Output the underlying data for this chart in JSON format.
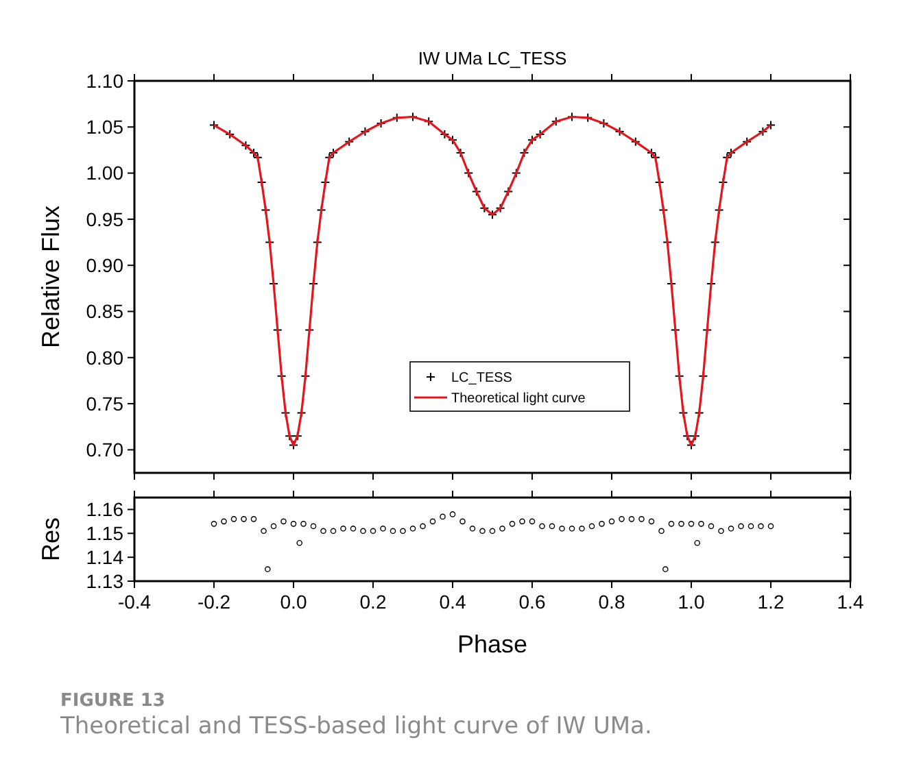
{
  "chart_data": [
    {
      "type": "scatter",
      "title": "IW UMa LC_TESS",
      "ylabel": "Relative Flux",
      "xlim": [
        -0.4,
        1.4
      ],
      "ylim": [
        0.675,
        1.1
      ],
      "xticks": [
        -0.4,
        -0.2,
        0,
        0.2,
        0.4,
        0.6,
        0.8,
        1,
        1.2,
        1.4
      ],
      "yticks": [
        {
          "value": 0.7,
          "label": "0.70"
        },
        {
          "value": 0.75,
          "label": "0.75"
        },
        {
          "value": 0.8,
          "label": "0.80"
        },
        {
          "value": 0.85,
          "label": "0.85"
        },
        {
          "value": 0.9,
          "label": "0.90"
        },
        {
          "value": 0.95,
          "label": "0.95"
        },
        {
          "value": 1,
          "label": "1.00"
        },
        {
          "value": 1.05,
          "label": "1.05"
        },
        {
          "value": 1.1,
          "label": "1.10"
        }
      ],
      "tick_labels": "y",
      "legend": "bottom",
      "grid": false,
      "x": [
        -0.2,
        -0.16,
        -0.12,
        -0.1,
        -0.09,
        -0.08,
        -0.07,
        -0.06,
        -0.05,
        -0.04,
        -0.03,
        -0.02,
        -0.01,
        0,
        0.01,
        0.02,
        0.03,
        0.04,
        0.05,
        0.06,
        0.07,
        0.08,
        0.09,
        0.1,
        0.14,
        0.18,
        0.22,
        0.26,
        0.3,
        0.34,
        0.38,
        0.4,
        0.42,
        0.44,
        0.46,
        0.48,
        0.5,
        0.52,
        0.54,
        0.56,
        0.58,
        0.6,
        0.62,
        0.66,
        0.7,
        0.74,
        0.78,
        0.82,
        0.86,
        0.9,
        0.91,
        0.92,
        0.93,
        0.94,
        0.95,
        0.96,
        0.97,
        0.98,
        0.99,
        1,
        1.01,
        1.02,
        1.03,
        1.04,
        1.05,
        1.06,
        1.07,
        1.08,
        1.09,
        1.1,
        1.14,
        1.18,
        1.2
      ],
      "series": [
        {
          "name": "LC_TESS",
          "marker": "cross",
          "color": "#000000",
          "values": [
            1.052,
            1.042,
            1.03,
            1.022,
            1.017,
            0.99,
            0.96,
            0.925,
            0.88,
            0.83,
            0.78,
            0.74,
            0.715,
            0.705,
            0.715,
            0.74,
            0.78,
            0.83,
            0.88,
            0.925,
            0.96,
            0.99,
            1.017,
            1.022,
            1.034,
            1.045,
            1.054,
            1.06,
            1.061,
            1.056,
            1.042,
            1.036,
            1.022,
            1,
            0.98,
            0.962,
            0.955,
            0.962,
            0.98,
            1,
            1.022,
            1.036,
            1.042,
            1.056,
            1.061,
            1.06,
            1.054,
            1.045,
            1.034,
            1.022,
            1.017,
            0.99,
            0.96,
            0.925,
            0.88,
            0.83,
            0.78,
            0.74,
            0.715,
            0.705,
            0.715,
            0.74,
            0.78,
            0.83,
            0.88,
            0.925,
            0.96,
            0.99,
            1.017,
            1.022,
            1.034,
            1.045,
            1.052
          ]
        },
        {
          "name": "Theoretical light curve",
          "type": "line",
          "color": "#e8141b",
          "values": [
            1.052,
            1.042,
            1.03,
            1.022,
            1.017,
            0.99,
            0.96,
            0.925,
            0.88,
            0.83,
            0.78,
            0.74,
            0.715,
            0.705,
            0.715,
            0.74,
            0.78,
            0.83,
            0.88,
            0.925,
            0.96,
            0.99,
            1.017,
            1.022,
            1.034,
            1.045,
            1.054,
            1.06,
            1.061,
            1.056,
            1.042,
            1.036,
            1.022,
            1,
            0.98,
            0.962,
            0.955,
            0.962,
            0.98,
            1,
            1.022,
            1.036,
            1.042,
            1.056,
            1.061,
            1.06,
            1.054,
            1.045,
            1.034,
            1.022,
            1.017,
            0.99,
            0.96,
            0.925,
            0.88,
            0.83,
            0.78,
            0.74,
            0.715,
            0.705,
            0.715,
            0.74,
            0.78,
            0.83,
            0.88,
            0.925,
            0.96,
            0.99,
            1.017,
            1.022,
            1.034,
            1.045,
            1.052
          ]
        }
      ]
    },
    {
      "type": "scatter",
      "xlabel": "Phase",
      "ylabel": "Res",
      "xlim": [
        -0.4,
        1.4
      ],
      "ylim": [
        1.13,
        1.165
      ],
      "xticks": [
        {
          "value": -0.4,
          "label": "-0.4"
        },
        {
          "value": -0.2,
          "label": "-0.2"
        },
        {
          "value": 0,
          "label": "0.0"
        },
        {
          "value": 0.2,
          "label": "0.2"
        },
        {
          "value": 0.4,
          "label": "0.4"
        },
        {
          "value": 0.6,
          "label": "0.6"
        },
        {
          "value": 0.8,
          "label": "0.8"
        },
        {
          "value": 1,
          "label": "1.0"
        },
        {
          "value": 1.2,
          "label": "1.2"
        },
        {
          "value": 1.4,
          "label": "1.4"
        }
      ],
      "yticks": [
        1.13,
        1.14,
        1.15,
        1.16
      ],
      "grid": false,
      "x": [
        -0.2,
        -0.175,
        -0.15,
        -0.125,
        -0.1,
        -0.075,
        -0.065,
        -0.05,
        -0.025,
        0,
        0.015,
        0.025,
        0.05,
        0.075,
        0.1,
        0.125,
        0.15,
        0.175,
        0.2,
        0.225,
        0.25,
        0.275,
        0.3,
        0.325,
        0.35,
        0.375,
        0.4,
        0.425,
        0.45,
        0.475,
        0.5,
        0.525,
        0.55,
        0.575,
        0.6,
        0.625,
        0.65,
        0.675,
        0.7,
        0.725,
        0.75,
        0.775,
        0.8,
        0.825,
        0.85,
        0.875,
        0.9,
        0.925,
        0.935,
        0.95,
        0.975,
        1,
        1.015,
        1.025,
        1.05,
        1.075,
        1.1,
        1.125,
        1.15,
        1.175,
        1.2
      ],
      "series": [
        {
          "marker": "circle",
          "color": "#000000",
          "values": [
            1.154,
            1.155,
            1.156,
            1.156,
            1.156,
            1.151,
            1.135,
            1.153,
            1.155,
            1.154,
            1.146,
            1.154,
            1.153,
            1.151,
            1.151,
            1.152,
            1.152,
            1.151,
            1.151,
            1.152,
            1.151,
            1.151,
            1.152,
            1.153,
            1.155,
            1.157,
            1.158,
            1.155,
            1.152,
            1.151,
            1.151,
            1.152,
            1.154,
            1.155,
            1.155,
            1.153,
            1.153,
            1.152,
            1.152,
            1.152,
            1.153,
            1.154,
            1.155,
            1.156,
            1.156,
            1.156,
            1.155,
            1.151,
            1.135,
            1.154,
            1.154,
            1.154,
            1.146,
            1.154,
            1.153,
            1.151,
            1.152,
            1.153,
            1.153,
            1.153,
            1.153
          ]
        }
      ],
      "annotations": [
        "FIGURE 13",
        "Theoretical and TESS-based light curve of IW UMa."
      ]
    }
  ]
}
